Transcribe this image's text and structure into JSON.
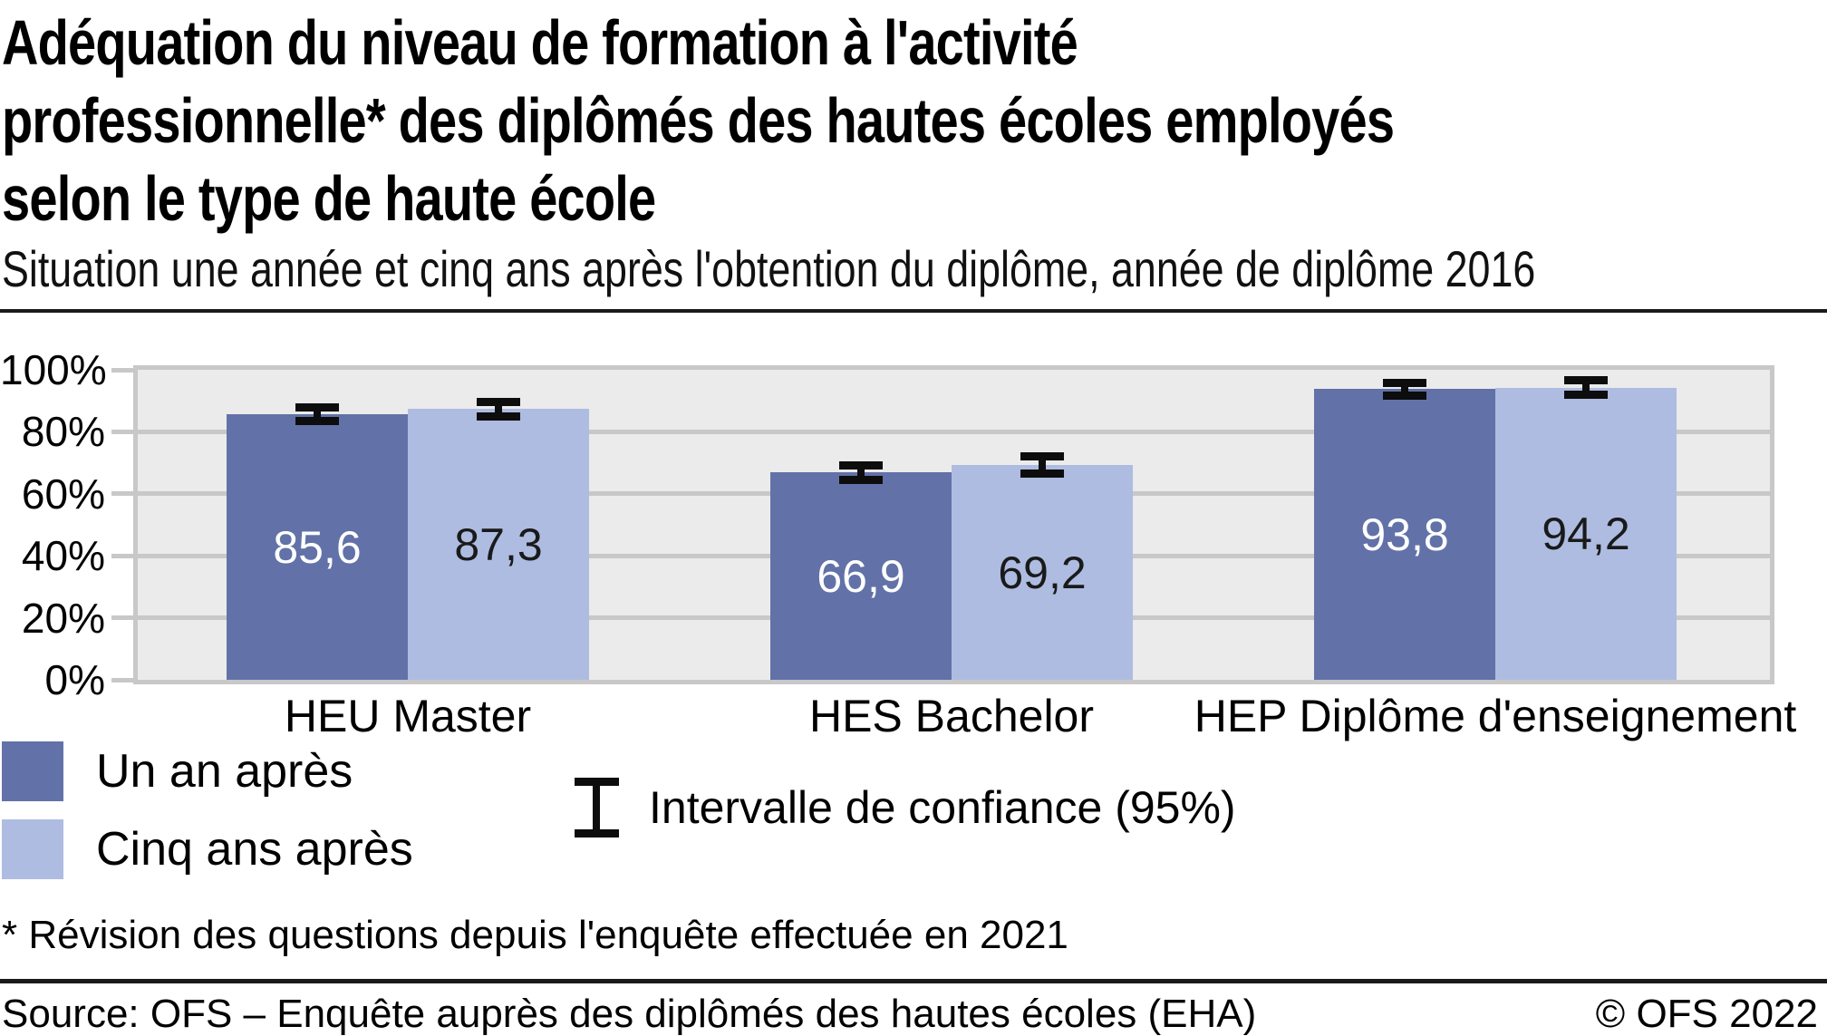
{
  "title": {
    "lines": [
      "Adéquation du niveau de formation à l'activité",
      "professionnelle* des diplômés des hautes écoles employés",
      "selon le type de haute école"
    ]
  },
  "subtitle": "Situation une année et cinq ans après l'obtention du diplôme, année de diplôme 2016",
  "footnote": "* Révision des questions depuis l'enquête effectuée en 2021",
  "source": "Source: OFS – Enquête auprès des diplômés des hautes écoles (EHA)",
  "copyright": "© OFS 2022",
  "colors": {
    "series_dark": "#6272a8",
    "series_light": "#aebce2",
    "plot_background": "#ebebeb",
    "grid": "#c8c8c8",
    "error_bar": "#0d0d0d"
  },
  "chart_data": {
    "type": "bar",
    "title": "Adéquation du niveau de formation à l'activité professionnelle* des diplômés des hautes écoles employés selon le type de haute école",
    "categories": [
      "HEU Master",
      "HES Bachelor",
      "HEP Diplôme d'enseignement"
    ],
    "series": [
      {
        "name": "Un an après",
        "values": [
          85.6,
          66.9,
          93.8
        ],
        "value_labels": [
          "85,6",
          "66,9",
          "93,8"
        ],
        "ci_halfwidth_pct": [
          0.9,
          1.0,
          0.8
        ],
        "color": "#6272a8",
        "label_color": "#ffffff"
      },
      {
        "name": "Cinq ans après",
        "values": [
          87.3,
          69.2,
          94.2
        ],
        "value_labels": [
          "87,3",
          "69,2",
          "94,2"
        ],
        "ci_halfwidth_pct": [
          1.0,
          1.5,
          1.0
        ],
        "color": "#aebce2",
        "label_color": "#1a1a1a"
      }
    ],
    "y_axis": {
      "min": 0,
      "max": 100,
      "step": 20,
      "tick_labels": [
        "0%",
        "20%",
        "40%",
        "60%",
        "80%",
        "100%"
      ]
    },
    "grid": true,
    "legend_position": "bottom-left",
    "ci_legend_label": "Intervalle de confiance (95%)",
    "error_bars": true
  }
}
